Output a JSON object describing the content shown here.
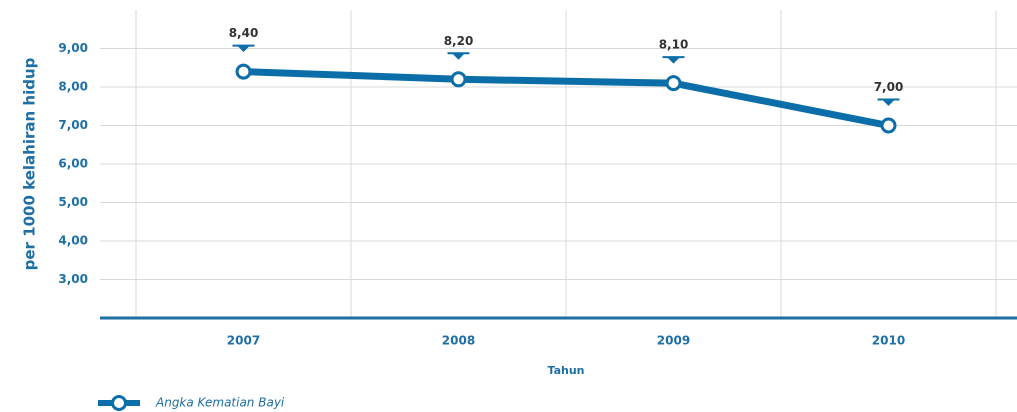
{
  "chart_data": {
    "type": "line",
    "y_label": "per 1000 kelahiran hidup",
    "x_label": "Tahun",
    "categories": [
      "2007",
      "2008",
      "2009",
      "2010"
    ],
    "series": [
      {
        "name": "Angka Kematian Bayi",
        "color": "#0b6ea8",
        "values": [
          8.4,
          8.2,
          8.1,
          7.0
        ],
        "value_labels": [
          "8,40",
          "8,20",
          "8,10",
          "7,00"
        ]
      }
    ],
    "ylim": [
      2,
      10
    ],
    "yticks": [
      {
        "value": 3,
        "label": "3,00"
      },
      {
        "value": 4,
        "label": "4,00"
      },
      {
        "value": 5,
        "label": "5,00"
      },
      {
        "value": 6,
        "label": "6,00"
      },
      {
        "value": 7,
        "label": "7,00"
      },
      {
        "value": 8,
        "label": "8,00"
      },
      {
        "value": 9,
        "label": "9,00"
      }
    ],
    "grid": true
  }
}
